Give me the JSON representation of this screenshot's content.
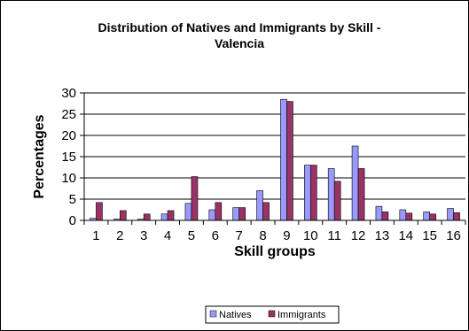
{
  "chart_data": {
    "type": "bar",
    "title_line1": "Distribution of Natives and Immigrants by Skill -",
    "title_line2": "Valencia",
    "xlabel": "Skill groups",
    "ylabel": "Percentages",
    "categories": [
      "1",
      "2",
      "3",
      "4",
      "5",
      "6",
      "7",
      "8",
      "9",
      "10",
      "11",
      "12",
      "13",
      "14",
      "15",
      "16"
    ],
    "ylim": [
      0,
      30
    ],
    "yticks": [
      "0",
      "5",
      "10",
      "15",
      "20",
      "25",
      "30"
    ],
    "grid": true,
    "legend_position": "bottom",
    "series": [
      {
        "name": "Natives",
        "color": "#9999ff",
        "values": [
          0.5,
          0.3,
          0.3,
          1.5,
          4.0,
          2.5,
          3.0,
          7.0,
          28.5,
          13.0,
          12.2,
          17.5,
          3.3,
          2.5,
          2.0,
          2.8
        ]
      },
      {
        "name": "Immigrants",
        "color": "#993366",
        "values": [
          4.2,
          2.3,
          1.5,
          2.3,
          10.3,
          4.2,
          3.0,
          4.2,
          28.0,
          13.0,
          9.2,
          12.2,
          2.0,
          1.7,
          1.5,
          1.8
        ]
      }
    ]
  }
}
